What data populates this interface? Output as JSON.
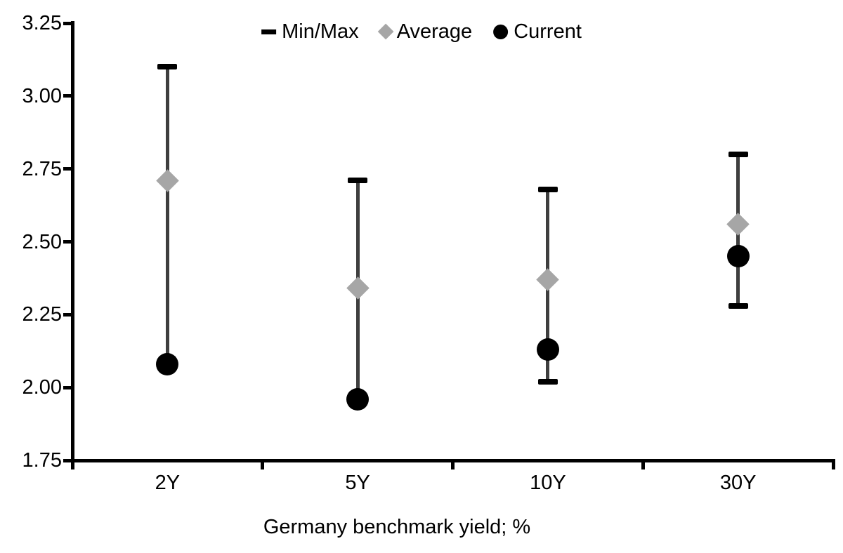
{
  "legend": {
    "items": [
      {
        "label": "Min/Max",
        "marker": "dash-icon"
      },
      {
        "label": "Average",
        "marker": "diamond-icon"
      },
      {
        "label": "Current",
        "marker": "circle-icon"
      }
    ]
  },
  "chart_data": {
    "type": "scatter",
    "subtype": "min-max range bars with average (diamond) and current (dot) markers",
    "categories": [
      "2Y",
      "5Y",
      "10Y",
      "30Y"
    ],
    "series": [
      {
        "name": "Min/Max",
        "role": "range",
        "min": [
          2.08,
          1.96,
          2.02,
          2.28
        ],
        "max": [
          3.1,
          2.71,
          2.68,
          2.8
        ]
      },
      {
        "name": "Average",
        "role": "diamond-marker",
        "values": [
          2.71,
          2.34,
          2.37,
          2.56
        ]
      },
      {
        "name": "Current",
        "role": "circle-marker",
        "values": [
          2.08,
          1.96,
          2.13,
          2.45
        ]
      }
    ],
    "title": "",
    "xlabel": "Germany benchmark yield; %",
    "ylabel": "",
    "ylim": [
      1.75,
      3.25
    ],
    "ytick_step": 0.25,
    "ytick_labels": [
      "3.25",
      "3.00",
      "2.75",
      "2.50",
      "2.25",
      "2.00",
      "1.75"
    ],
    "grid": false,
    "legend_position": "top-center",
    "colors": {
      "range_line": "#3f3f3f",
      "cap": "#000000",
      "average": "#a6a6a6",
      "current": "#000000",
      "axis": "#000000",
      "text": "#000000",
      "background": "#ffffff"
    }
  }
}
